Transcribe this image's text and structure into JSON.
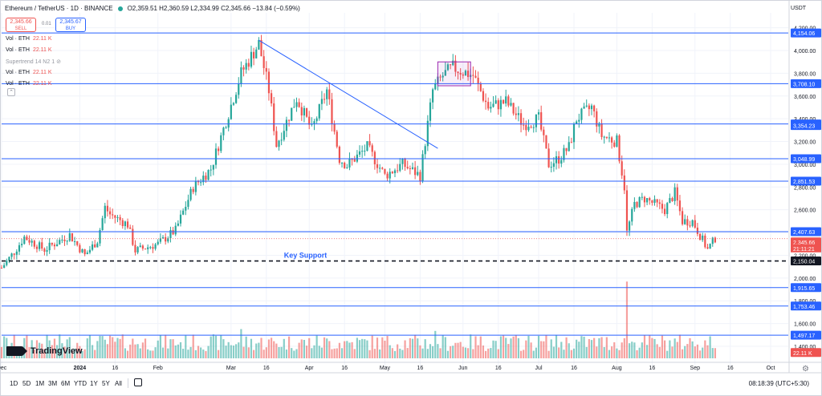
{
  "header": {
    "symbol": "Ethereum / TetherUS · 1D · BINANCE",
    "ohlc": "O2,359.51 H2,360.59 L2,334.99 C2,345.66 −13.84 (−0.59%)"
  },
  "trade": {
    "sell_price": "2,345.66",
    "sell_label": "SELL",
    "spread": "0.01",
    "buy_price": "2,345.67",
    "buy_label": "BUY"
  },
  "indicators": [
    {
      "name": "Vol · ETH",
      "value": "22.11 K"
    },
    {
      "name": "Vol · ETH",
      "value": "22.11 K"
    },
    {
      "name": "Supertrend 14 N2 1",
      "value": ""
    },
    {
      "name": "Vol · ETH",
      "value": "22.11 K"
    },
    {
      "name": "Vol · ETH",
      "value": "22.11 K"
    }
  ],
  "currency": "USDT",
  "annotation": "Key Support",
  "logo": "TradingView",
  "timeframes": [
    "1D",
    "5D",
    "1M",
    "3M",
    "6M",
    "YTD",
    "1Y",
    "5Y",
    "All"
  ],
  "clock": "08:18:39 (UTC+5:30)",
  "colors": {
    "up": "#26a69a",
    "down": "#ef5350",
    "hline": "#2962ff",
    "grid": "#f0f3fa"
  },
  "chart_data": {
    "type": "candlestick",
    "symbol": "ETH/USDT",
    "interval": "1D",
    "y_axis": {
      "ticks": [
        "4,200.00",
        "4,000.00",
        "3,800.00",
        "3,600.00",
        "3,400.00",
        "3,200.00",
        "3,000.00",
        "2,800.00",
        "2,600.00",
        "2,400.00",
        "2,200.00",
        "2,000.00",
        "1,800.00",
        "1,600.00",
        "1,400.00"
      ],
      "range": [
        1280,
        4310
      ]
    },
    "x_axis": {
      "ticks": [
        "Dec",
        "2024",
        "16",
        "Feb",
        "Mar",
        "16",
        "Apr",
        "16",
        "May",
        "16",
        "Jun",
        "16",
        "Jul",
        "16",
        "Aug",
        "16",
        "Sep",
        "16",
        "Oct"
      ],
      "range": [
        "2023-12-01",
        "2024-10-08"
      ]
    },
    "horizontal_levels": [
      {
        "value": 4154.06,
        "label": "4,154.06"
      },
      {
        "value": 3708.1,
        "label": "3,708.10"
      },
      {
        "value": 3354.2,
        "label": "3,354.20"
      },
      {
        "value": 3048.99,
        "label": "3,048.99"
      },
      {
        "value": 2851.53,
        "label": "2,851.53"
      },
      {
        "value": 2407.63,
        "label": "2,407.63"
      },
      {
        "value": 1915.65,
        "label": "1,915.65"
      },
      {
        "value": 1753.46,
        "label": "1,753.46"
      },
      {
        "value": 1497.17,
        "label": "1,497.17"
      }
    ],
    "key_support": {
      "value": 2150.04,
      "label": "2,150.04",
      "text": "Key Support"
    },
    "price_labels": [
      {
        "value": 3354.23,
        "label": "3,354.23"
      },
      {
        "value": 2345.66,
        "label": "2,345.66"
      }
    ],
    "countdown": "21:11:21",
    "volume_label": "22.11 K",
    "trendline": {
      "from": {
        "date": "2024-03-12",
        "price": 4090
      },
      "to": {
        "date": "2024-05-22",
        "price": 3140
      }
    },
    "rectangle": {
      "from": {
        "date": "2024-05-22",
        "price": 3900
      },
      "to": {
        "date": "2024-06-04",
        "price": 3690
      }
    },
    "close_path": [
      [
        "2023-12-01",
        2090
      ],
      [
        "2023-12-06",
        2230
      ],
      [
        "2023-12-10",
        2360
      ],
      [
        "2023-12-18",
        2250
      ],
      [
        "2023-12-28",
        2380
      ],
      [
        "2024-01-03",
        2200
      ],
      [
        "2024-01-08",
        2330
      ],
      [
        "2024-01-11",
        2620
      ],
      [
        "2024-01-13",
        2560
      ],
      [
        "2024-01-20",
        2470
      ],
      [
        "2024-01-23",
        2240
      ],
      [
        "2024-02-01",
        2300
      ],
      [
        "2024-02-08",
        2420
      ],
      [
        "2024-02-15",
        2800
      ],
      [
        "2024-02-22",
        2960
      ],
      [
        "2024-02-28",
        3380
      ],
      [
        "2024-03-05",
        3800
      ],
      [
        "2024-03-12",
        4060
      ],
      [
        "2024-03-16",
        3650
      ],
      [
        "2024-03-19",
        3170
      ],
      [
        "2024-03-27",
        3580
      ],
      [
        "2024-04-02",
        3300
      ],
      [
        "2024-04-08",
        3650
      ],
      [
        "2024-04-13",
        3050
      ],
      [
        "2024-04-16",
        2990
      ],
      [
        "2024-04-24",
        3150
      ],
      [
        "2024-05-01",
        2900
      ],
      [
        "2024-05-08",
        3000
      ],
      [
        "2024-05-15",
        2900
      ],
      [
        "2024-05-20",
        3650
      ],
      [
        "2024-05-24",
        3780
      ],
      [
        "2024-05-28",
        3850
      ],
      [
        "2024-06-05",
        3780
      ],
      [
        "2024-06-11",
        3500
      ],
      [
        "2024-06-18",
        3550
      ],
      [
        "2024-06-25",
        3350
      ],
      [
        "2024-07-01",
        3400
      ],
      [
        "2024-07-05",
        3000
      ],
      [
        "2024-07-09",
        3050
      ],
      [
        "2024-07-13",
        3150
      ],
      [
        "2024-07-16",
        3400
      ],
      [
        "2024-07-22",
        3500
      ],
      [
        "2024-07-26",
        3250
      ],
      [
        "2024-08-01",
        3200
      ],
      [
        "2024-08-04",
        2800
      ],
      [
        "2024-08-05",
        2400
      ],
      [
        "2024-08-08",
        2650
      ],
      [
        "2024-08-12",
        2700
      ],
      [
        "2024-08-20",
        2600
      ],
      [
        "2024-08-24",
        2750
      ],
      [
        "2024-08-27",
        2500
      ],
      [
        "2024-08-31",
        2500
      ],
      [
        "2024-09-06",
        2250
      ],
      [
        "2024-09-09",
        2350
      ]
    ],
    "volume_spikes": [
      {
        "date": "2024-08-05",
        "volume_scale": 4.2
      },
      {
        "date": "2024-03-05",
        "volume_scale": 1.6
      },
      {
        "date": "2024-05-21",
        "volume_scale": 1.5
      }
    ]
  }
}
